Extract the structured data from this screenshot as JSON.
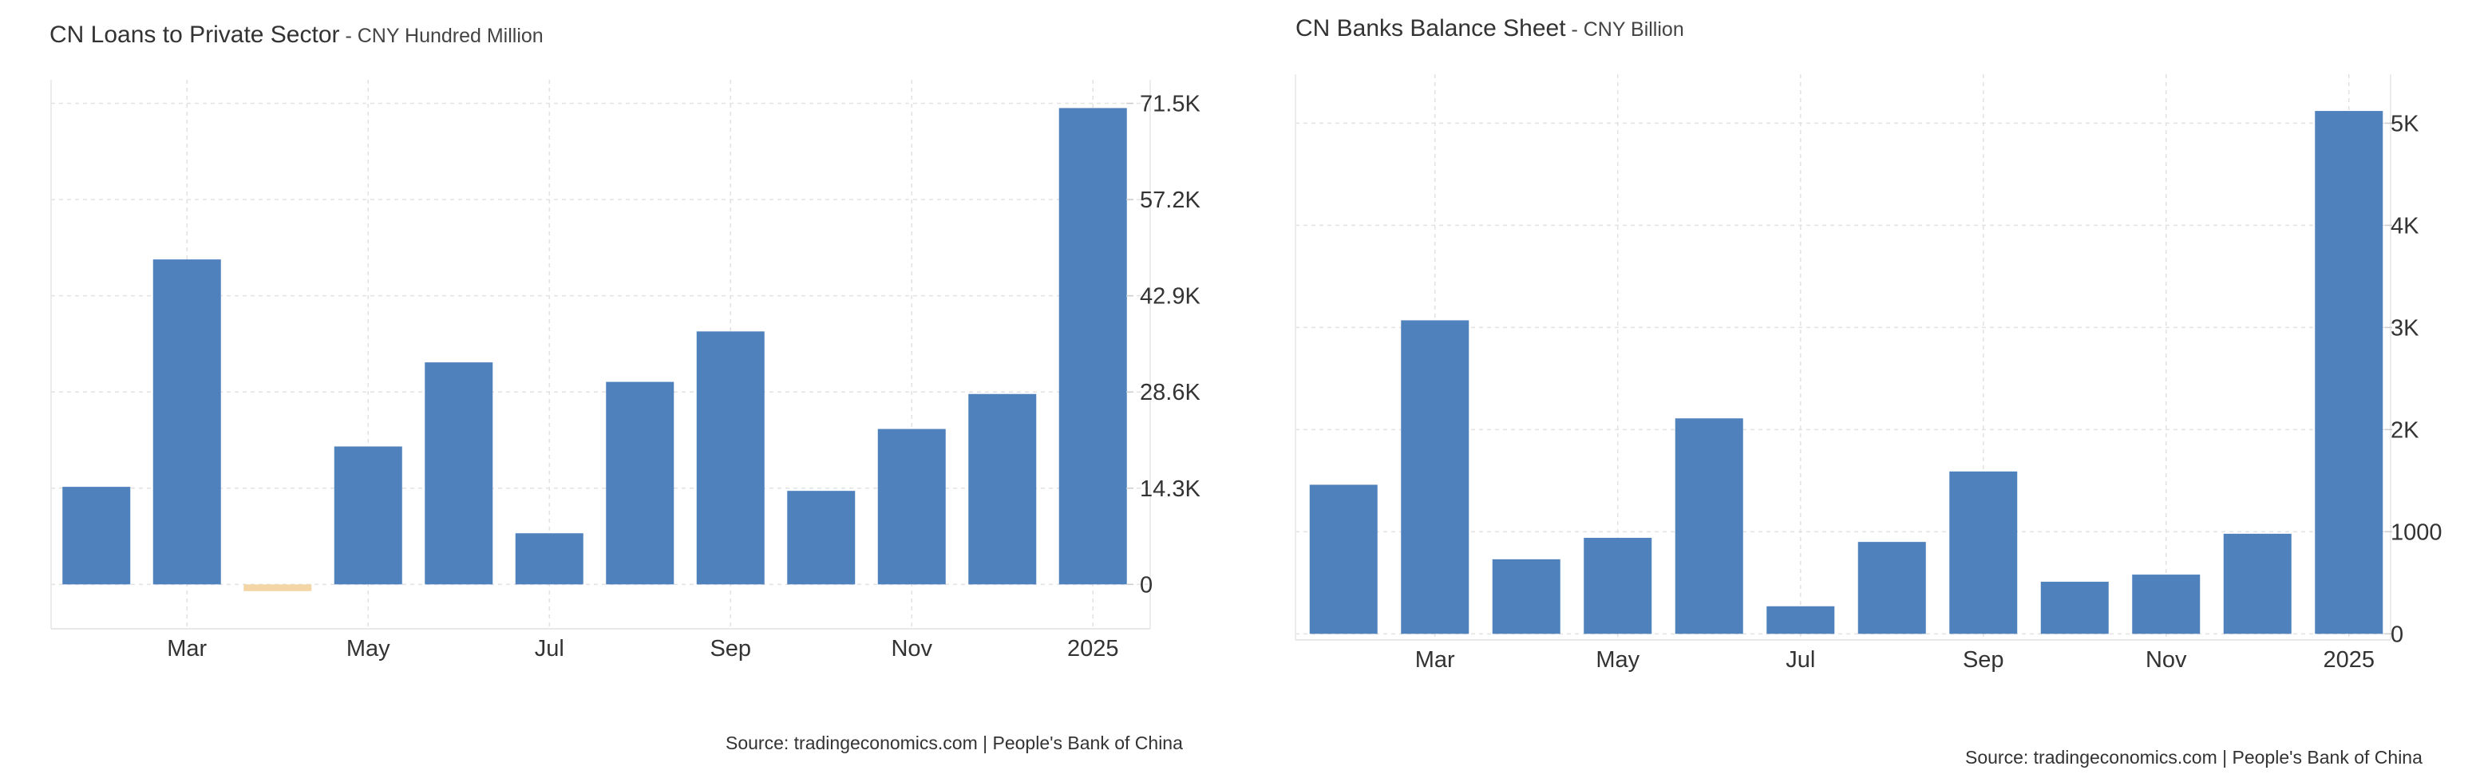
{
  "chart_data": [
    {
      "type": "bar",
      "title": "CN Loans to Private Sector",
      "subtitle": "CNY Hundred Million",
      "source": "Source: tradingeconomics.com | People's Bank of China",
      "categories": [
        "Feb 2024",
        "Mar 2024",
        "Apr 2024",
        "May 2024",
        "Jun 2024",
        "Jul 2024",
        "Aug 2024",
        "Sep 2024",
        "Oct 2024",
        "Nov 2024",
        "Dec 2024",
        "Jan 2025"
      ],
      "values": [
        14500,
        48300,
        -1000,
        20500,
        33000,
        7600,
        30100,
        37600,
        13900,
        23100,
        28300,
        70800
      ],
      "x_tick_labels": [
        "Mar",
        "May",
        "Jul",
        "Sep",
        "Nov",
        "2025"
      ],
      "y_tick_values": [
        0,
        14300,
        28600,
        42900,
        57200,
        71500
      ],
      "y_tick_labels": [
        "0",
        "14.3K",
        "28.6K",
        "42.9K",
        "57.2K",
        "71.5K"
      ],
      "ylim": [
        -6600,
        75000
      ],
      "bar_color": "#4f81bd",
      "negative_bar_color": "#f3d5a6",
      "grid": true,
      "xlabel": "",
      "ylabel": ""
    },
    {
      "type": "bar",
      "title": "CN Banks Balance Sheet",
      "subtitle": "CNY Billion",
      "source": "Source: tradingeconomics.com | People's Bank of China",
      "categories": [
        "Feb 2024",
        "Mar 2024",
        "Apr 2024",
        "May 2024",
        "Jun 2024",
        "Jul 2024",
        "Aug 2024",
        "Sep 2024",
        "Oct 2024",
        "Nov 2024",
        "Dec 2024",
        "Jan 2025"
      ],
      "values": [
        1460,
        3070,
        730,
        940,
        2110,
        270,
        900,
        1590,
        510,
        580,
        980,
        5120
      ],
      "x_tick_labels": [
        "Mar",
        "May",
        "Jul",
        "Sep",
        "Nov",
        "2025"
      ],
      "y_tick_values": [
        0,
        1000,
        2000,
        3000,
        4000,
        5000
      ],
      "y_tick_labels": [
        "0",
        "1000",
        "2K",
        "3K",
        "4K",
        "5K"
      ],
      "ylim": [
        -60,
        5480
      ],
      "bar_color": "#4f81bd",
      "negative_bar_color": "#f3d5a6",
      "grid": true,
      "xlabel": "",
      "ylabel": ""
    }
  ]
}
